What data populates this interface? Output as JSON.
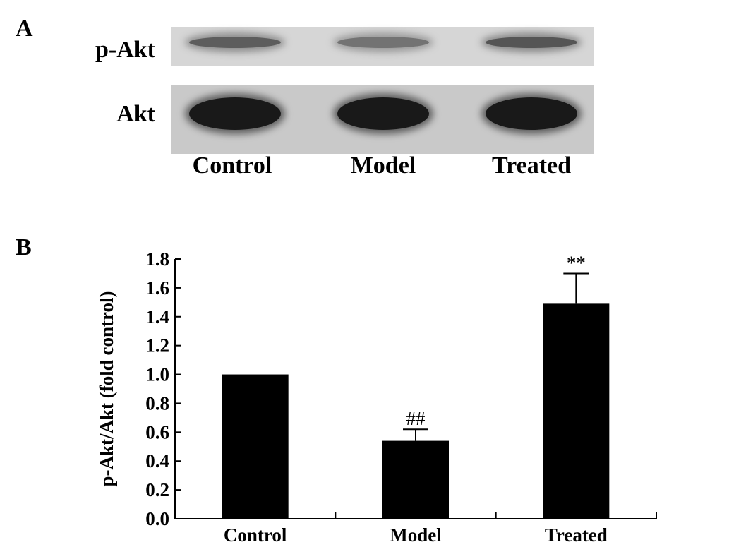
{
  "panel_a": {
    "letter": "A",
    "rows": [
      {
        "label": "p-Akt",
        "intensities": [
          0.55,
          0.4,
          0.6
        ]
      },
      {
        "label": "Akt",
        "intensities": [
          1.0,
          1.0,
          1.0
        ]
      }
    ],
    "lanes": [
      "Control",
      "Model",
      "Treated"
    ]
  },
  "panel_b": {
    "letter": "B"
  },
  "chart_data": {
    "type": "bar",
    "categories": [
      "Control",
      "Model",
      "Treated"
    ],
    "values": [
      1.0,
      0.54,
      1.49
    ],
    "errors": [
      0,
      0.08,
      0.21
    ],
    "annotations": [
      "",
      "##",
      "**"
    ],
    "ylabel": "p-Akt/Akt (fold control)",
    "xlabel": "",
    "ylim": [
      0,
      1.8
    ],
    "yticks": [
      "0.0",
      "0.2",
      "0.4",
      "0.6",
      "0.8",
      "1.0",
      "1.2",
      "1.4",
      "1.6",
      "1.8"
    ],
    "bar_color": "#000000",
    "grid": false,
    "legend": "none"
  }
}
